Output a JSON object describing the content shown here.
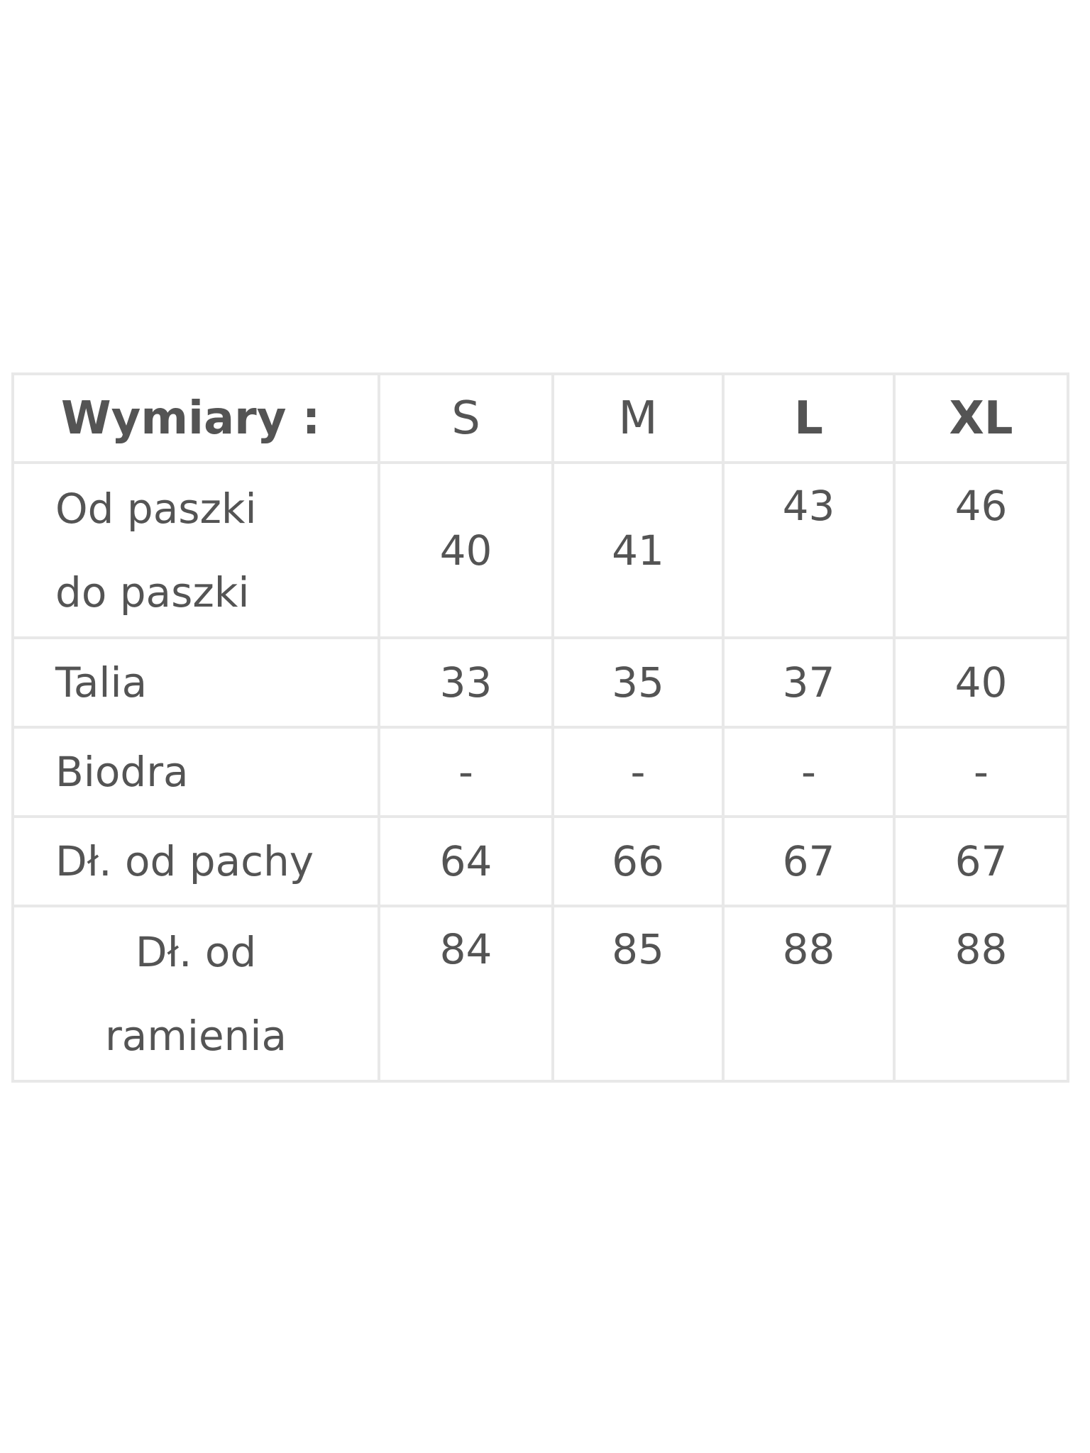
{
  "table": {
    "header": [
      "Wymiary :",
      "S",
      "M",
      "L",
      "XL"
    ],
    "rows": [
      {
        "label_lines": [
          "Od paszki",
          "do paszki"
        ],
        "values": [
          "40",
          "41",
          "43",
          "46"
        ]
      },
      {
        "label_lines": [
          "Talia"
        ],
        "values": [
          "33",
          "35",
          "37",
          "40"
        ]
      },
      {
        "label_lines": [
          "Biodra"
        ],
        "values": [
          "-",
          "-",
          "-",
          "-"
        ]
      },
      {
        "label_lines": [
          "Dł. od pachy"
        ],
        "values": [
          "64",
          "66",
          "67",
          "67"
        ]
      },
      {
        "label_lines": [
          "Dł. od",
          "ramienia"
        ],
        "values": [
          "84",
          "85",
          "88",
          "88"
        ]
      }
    ]
  }
}
